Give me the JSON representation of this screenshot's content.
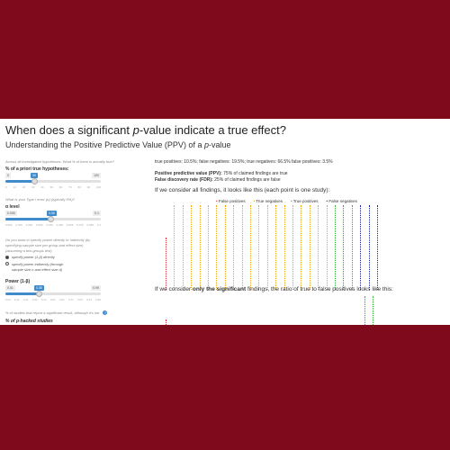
{
  "header": {
    "title_pre": "When does a significant ",
    "title_var": "p",
    "title_post": "-value indicate a true effect?",
    "subtitle_pre": "Understanding the Positive Predictive Value (PPV) of a ",
    "subtitle_var": "p",
    "subtitle_post": "-value"
  },
  "sidebar": {
    "intro": "Across all investigated hypotheses: What % of them is actually true?",
    "prior": {
      "label": "% of a priori true hypotheses:",
      "min": "0",
      "max": "100",
      "value": "30",
      "value_fraction": 0.3,
      "ticks": [
        "0",
        "10",
        "20",
        "30",
        "40",
        "50",
        "60",
        "70",
        "80",
        "90",
        "100"
      ]
    },
    "alpha_intro": "What is your Type I error (α) (typically 5%)?",
    "alpha": {
      "label": "α level",
      "min": "0.005",
      "max": "0.1",
      "value": "0.05",
      "value_fraction": 0.47,
      "ticks": [
        "0.005",
        "0.015",
        "0.025",
        "0.035",
        "0.045",
        "0.055",
        "0.065",
        "0.075",
        "0.085",
        "0.1"
      ]
    },
    "power_q": "Do you want to specify power directly or indirectly (by specifying sample size per group and effect size) (assuming a two-groups test)",
    "radio1": "specify power (1-β) directly",
    "radio2": "specify power indirectly (through sample size n and effect size d)",
    "power": {
      "label": "Power (1-β)",
      "min": "0.01",
      "max": "0.99",
      "value": "0.35",
      "value_fraction": 0.35,
      "ticks": [
        "0.01",
        "0.11",
        "0.21",
        "0.31",
        "0.41",
        "0.51",
        "0.61",
        "0.71",
        "0.81",
        "0.91",
        "0.99"
      ]
    },
    "phack_q": "% of studies that report a significant result, although it's not",
    "phack_help": "?",
    "phack_label": "% of p-hacked studies"
  },
  "main": {
    "rates": "true positives: 10.5%; false negatives: 19.5%; true negatives: 66.5% false positives: 3.5%",
    "ppv_label": "Positive predictive value (PPV):",
    "ppv_text": " 75% of claimed findings are true",
    "fdr_label": "False discovery rate (FDR):",
    "fdr_text": " 25% of claimed findings are false",
    "all_heading": "If we consider all findings, it looks like this (each point is one study):",
    "sig_heading_pre": "If we consider ",
    "sig_heading_bold": "only the significant",
    "sig_heading_post": " findings, the ratio of true to false positives looks like this:",
    "legend": [
      {
        "label": "False positives",
        "color": "#e0202a"
      },
      {
        "label": "True negatives",
        "color": "#f0a500"
      },
      {
        "label": "True positives",
        "color": "#2ab52a"
      },
      {
        "label": "False negatives",
        "color": "#1a1aa8"
      }
    ]
  },
  "colors": {
    "background": "#7e0a1c",
    "slider_fill": "#428bca"
  }
}
